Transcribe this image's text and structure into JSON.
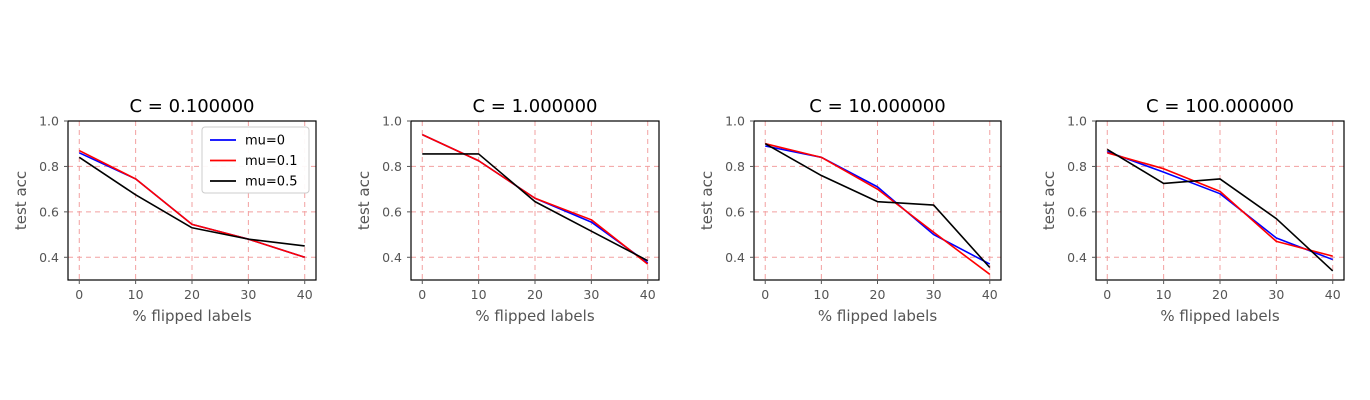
{
  "chart_data": [
    {
      "type": "line",
      "title": "C = 0.100000",
      "xlabel": "% flipped labels",
      "ylabel": "test acc",
      "x": [
        0,
        10,
        20,
        30,
        40
      ],
      "xticks": [
        "0",
        "10",
        "20",
        "30",
        "40"
      ],
      "yticks": [
        "0.4",
        "0.6",
        "0.8",
        "1.0"
      ],
      "xlim": [
        -2,
        42
      ],
      "ylim": [
        0.3,
        1.0
      ],
      "grid": true,
      "legend": {
        "show": true,
        "position": "upper-right"
      },
      "series": [
        {
          "name": "mu=0",
          "color": "#0000ff",
          "values": [
            0.86,
            0.745,
            0.545,
            0.48,
            0.4
          ]
        },
        {
          "name": "mu=0.1",
          "color": "#ff0000",
          "values": [
            0.87,
            0.745,
            0.545,
            0.48,
            0.4
          ]
        },
        {
          "name": "mu=0.5",
          "color": "#000000",
          "values": [
            0.84,
            0.675,
            0.53,
            0.48,
            0.45
          ]
        }
      ]
    },
    {
      "type": "line",
      "title": "C = 1.000000",
      "xlabel": "% flipped labels",
      "ylabel": "test acc",
      "x": [
        0,
        10,
        20,
        30,
        40
      ],
      "xticks": [
        "0",
        "10",
        "20",
        "30",
        "40"
      ],
      "yticks": [
        "0.4",
        "0.6",
        "0.8",
        "1.0"
      ],
      "xlim": [
        -2,
        42
      ],
      "ylim": [
        0.3,
        1.0
      ],
      "grid": true,
      "legend": {
        "show": false
      },
      "series": [
        {
          "name": "mu=0",
          "color": "#0000ff",
          "values": [
            0.94,
            0.825,
            0.66,
            0.555,
            0.375
          ]
        },
        {
          "name": "mu=0.1",
          "color": "#ff0000",
          "values": [
            0.94,
            0.825,
            0.66,
            0.565,
            0.37
          ]
        },
        {
          "name": "mu=0.5",
          "color": "#000000",
          "values": [
            0.855,
            0.855,
            0.645,
            0.515,
            0.385
          ]
        }
      ]
    },
    {
      "type": "line",
      "title": "C = 10.000000",
      "xlabel": "% flipped labels",
      "ylabel": "test acc",
      "x": [
        0,
        10,
        20,
        30,
        40
      ],
      "xticks": [
        "0",
        "10",
        "20",
        "30",
        "40"
      ],
      "yticks": [
        "0.4",
        "0.6",
        "0.8",
        "1.0"
      ],
      "xlim": [
        -2,
        42
      ],
      "ylim": [
        0.3,
        1.0
      ],
      "grid": true,
      "legend": {
        "show": false
      },
      "series": [
        {
          "name": "mu=0",
          "color": "#0000ff",
          "values": [
            0.89,
            0.84,
            0.71,
            0.5,
            0.37
          ]
        },
        {
          "name": "mu=0.1",
          "color": "#ff0000",
          "values": [
            0.9,
            0.84,
            0.7,
            0.51,
            0.325
          ]
        },
        {
          "name": "mu=0.5",
          "color": "#000000",
          "values": [
            0.9,
            0.76,
            0.645,
            0.63,
            0.355
          ]
        }
      ]
    },
    {
      "type": "line",
      "title": "C = 100.000000",
      "xlabel": "% flipped labels",
      "ylabel": "test acc",
      "x": [
        0,
        10,
        20,
        30,
        40
      ],
      "xticks": [
        "0",
        "10",
        "20",
        "30",
        "40"
      ],
      "yticks": [
        "0.4",
        "0.6",
        "0.8",
        "1.0"
      ],
      "xlim": [
        -2,
        42
      ],
      "ylim": [
        0.3,
        1.0
      ],
      "grid": true,
      "legend": {
        "show": false
      },
      "series": [
        {
          "name": "mu=0",
          "color": "#0000ff",
          "values": [
            0.865,
            0.775,
            0.68,
            0.485,
            0.39
          ]
        },
        {
          "name": "mu=0.1",
          "color": "#ff0000",
          "values": [
            0.86,
            0.79,
            0.69,
            0.47,
            0.405
          ]
        },
        {
          "name": "mu=0.5",
          "color": "#000000",
          "values": [
            0.875,
            0.725,
            0.745,
            0.57,
            0.34
          ]
        }
      ]
    }
  ]
}
